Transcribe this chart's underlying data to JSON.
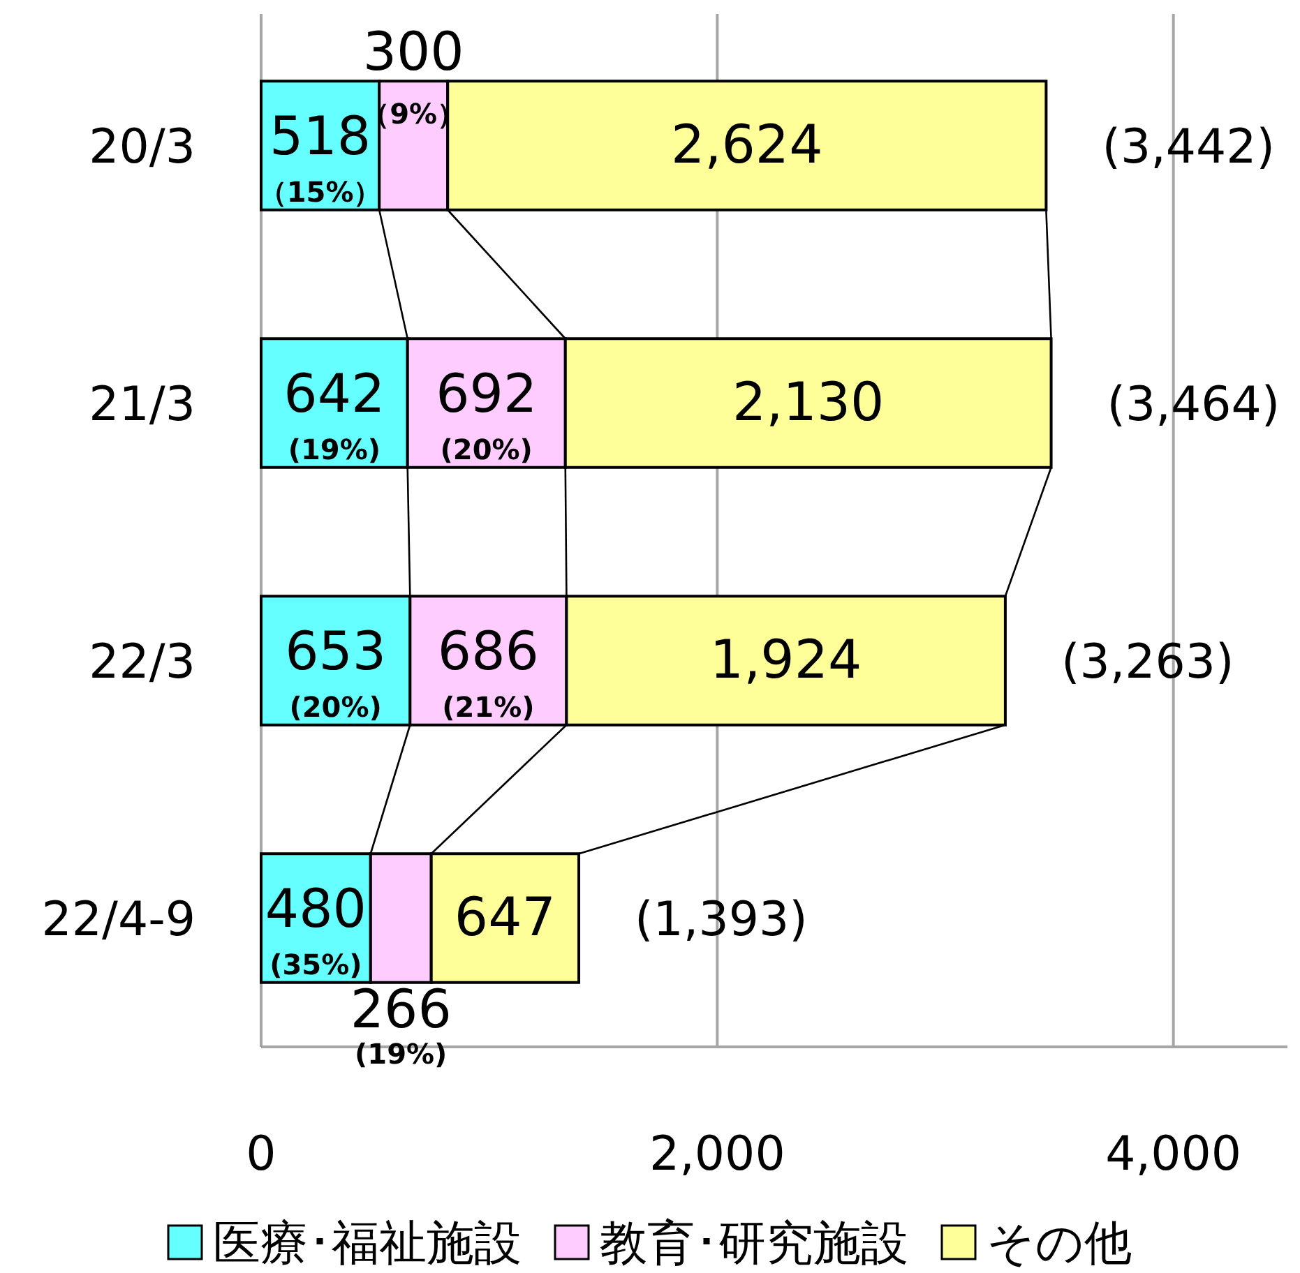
{
  "chart_data": {
    "type": "bar",
    "orientation": "horizontal",
    "stacked": true,
    "grid": "x",
    "legend": "bottom",
    "categories": [
      "20/3",
      "21/3",
      "22/3",
      "22/4-9"
    ],
    "series": [
      {
        "name": "医療･福祉施設",
        "color": "#66ffff",
        "values": [
          518,
          642,
          653,
          480
        ],
        "value_labels": [
          "518 **（15%）**",
          "642 **(19%)**",
          "653 **(20%)**",
          "480 **(35%)**"
        ]
      },
      {
        "name": "教育･研究施設",
        "color": "#ffccff",
        "values": [
          300,
          692,
          686,
          266
        ],
        "value_labels": [
          "300 **（9%）**",
          "692 **(20%)**",
          "686 **(21%)**",
          "266 **(19%)**"
        ]
      },
      {
        "name": "その他",
        "color": "#ffff99",
        "values": [
          2624,
          2130,
          1924,
          647
        ],
        "value_labels": [
          "2,624",
          "2,130",
          "1,924",
          "647"
        ]
      }
    ],
    "totals": [
      "(3,442)",
      "(3,464)",
      "(3,263)",
      "(1,393)"
    ],
    "xlim": [
      0,
      4500
    ],
    "xticks": [
      0,
      {
        "value": 2000,
        "label": "2,000"
      },
      {
        "value": 4000,
        "label": "4,000"
      }
    ]
  }
}
